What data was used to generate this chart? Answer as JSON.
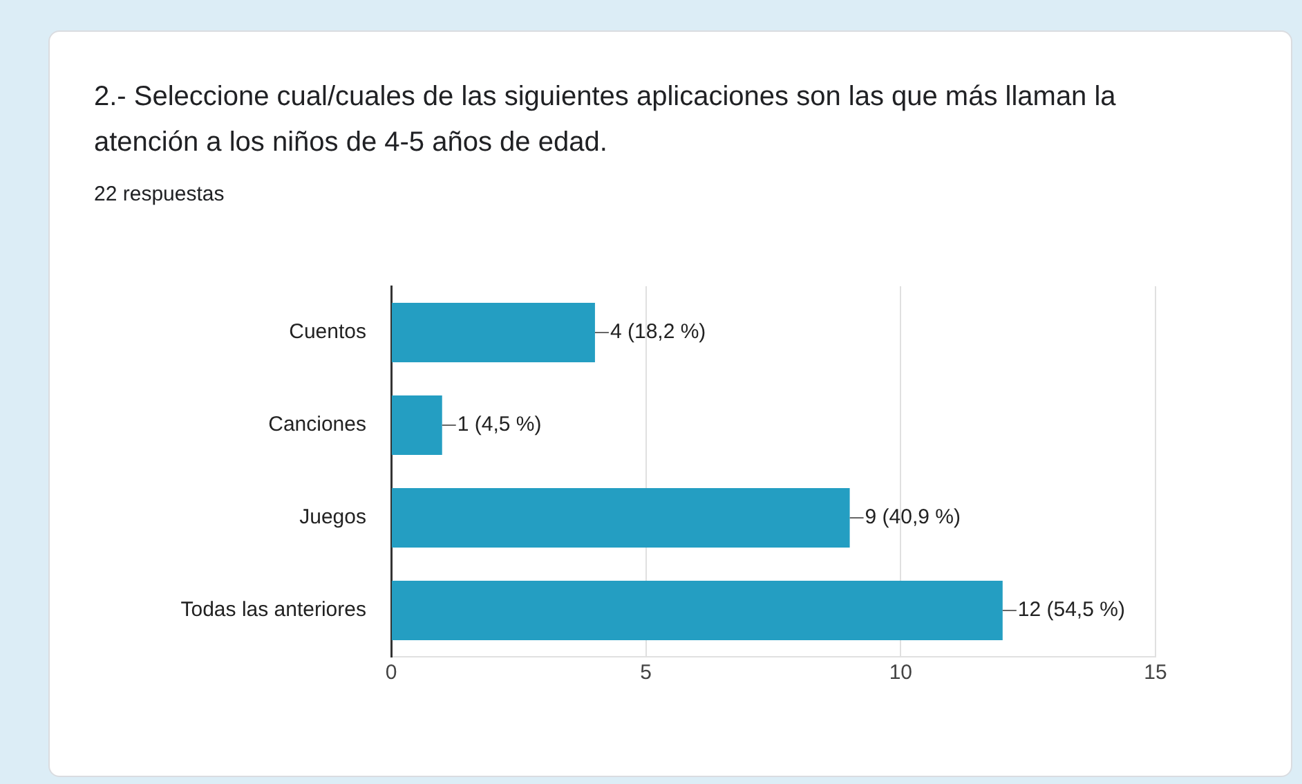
{
  "chart_data": {
    "type": "bar",
    "orientation": "horizontal",
    "title": "2.- Seleccione cual/cuales de las siguientes aplicaciones son las que más llaman la atención a los niños de 4-5 años de edad.",
    "subtitle": "22 respuestas",
    "categories": [
      "Cuentos",
      "Canciones",
      "Juegos",
      "Todas las anteriores"
    ],
    "values": [
      4,
      1,
      9,
      12
    ],
    "value_labels": [
      "4 (18,2 %)",
      "1 (4,5 %)",
      "9 (40,9 %)",
      "12 (54,5 %)"
    ],
    "color": "#249ec2",
    "xlim": [
      0,
      15
    ],
    "xticks": [
      0,
      5,
      10,
      15
    ],
    "grid": "x",
    "legend": false
  }
}
